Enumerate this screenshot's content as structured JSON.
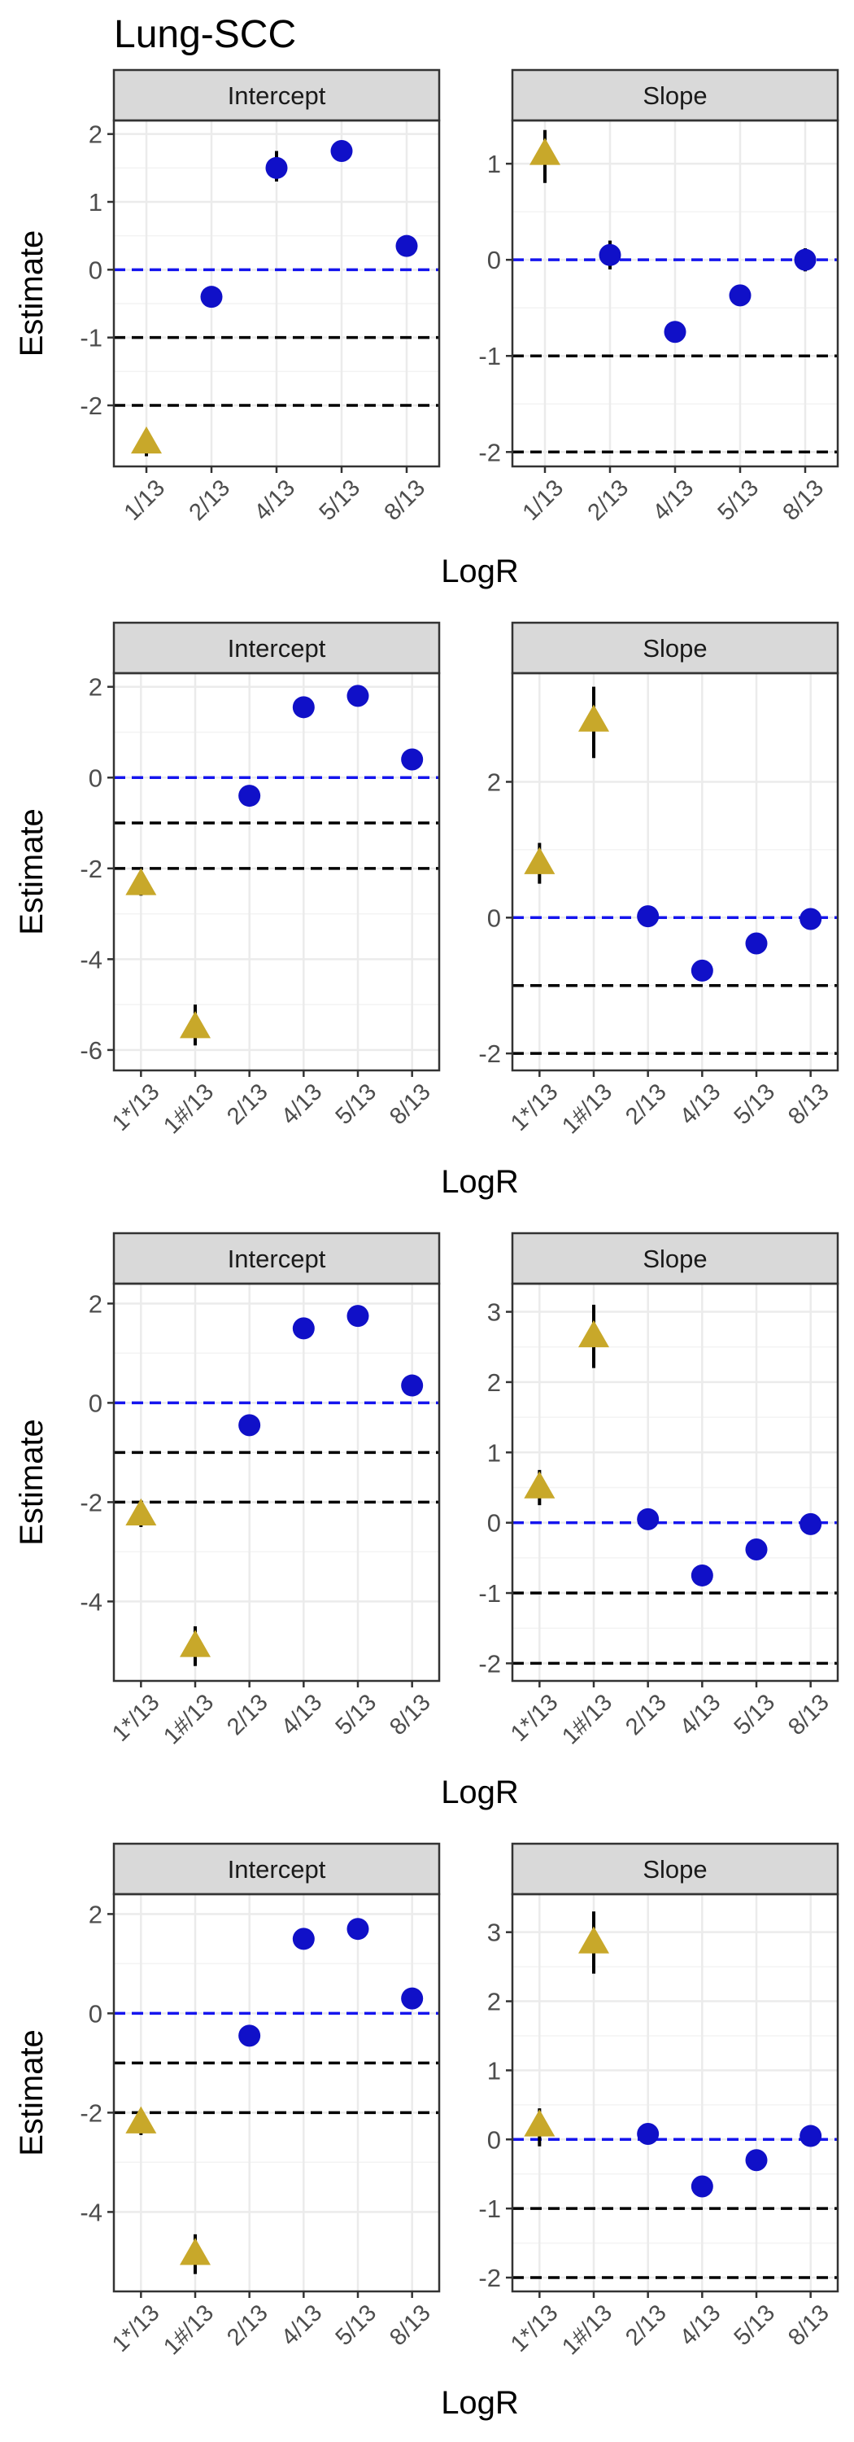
{
  "figure_title": "Lung-SCC",
  "colors": {
    "point": "#1010c8",
    "triangle": "#c8a82a",
    "zero_line": "#1515ee",
    "ref_line": "#000000",
    "strip_bg": "#d9d9d9",
    "grid": "#ebebeb"
  },
  "chart_data": [
    {
      "type": "scatter",
      "xlabel": "LogR",
      "ylabel": "Estimate",
      "categories": [
        "1/13",
        "2/13",
        "4/13",
        "5/13",
        "8/13"
      ],
      "panels": [
        {
          "strip": "Intercept",
          "ylim": [
            -2.9,
            2.2
          ],
          "yticks": [
            -2,
            -1,
            0,
            1,
            2
          ],
          "points": [
            {
              "x": "1/13",
              "y": -2.55,
              "shape": "triangle",
              "lo": -2.75,
              "hi": -2.35
            },
            {
              "x": "2/13",
              "y": -0.4,
              "shape": "circle"
            },
            {
              "x": "4/13",
              "y": 1.5,
              "shape": "circle",
              "lo": 1.3,
              "hi": 1.75
            },
            {
              "x": "5/13",
              "y": 1.75,
              "shape": "circle"
            },
            {
              "x": "8/13",
              "y": 0.35,
              "shape": "circle"
            }
          ]
        },
        {
          "strip": "Slope",
          "ylim": [
            -2.15,
            1.45
          ],
          "yticks": [
            -2,
            -1,
            0,
            1
          ],
          "points": [
            {
              "x": "1/13",
              "y": 1.1,
              "shape": "triangle",
              "lo": 0.8,
              "hi": 1.35
            },
            {
              "x": "2/13",
              "y": 0.05,
              "shape": "circle",
              "lo": -0.1,
              "hi": 0.2
            },
            {
              "x": "4/13",
              "y": -0.75,
              "shape": "circle"
            },
            {
              "x": "5/13",
              "y": -0.37,
              "shape": "circle"
            },
            {
              "x": "8/13",
              "y": 0.0,
              "shape": "circle",
              "lo": -0.12,
              "hi": 0.12
            }
          ]
        }
      ]
    },
    {
      "type": "scatter",
      "xlabel": "LogR",
      "ylabel": "Estimate",
      "categories": [
        "1*/13",
        "1#/13",
        "2/13",
        "4/13",
        "5/13",
        "8/13"
      ],
      "panels": [
        {
          "strip": "Intercept",
          "ylim": [
            -6.45,
            2.3
          ],
          "yticks": [
            -6,
            -4,
            -2,
            0,
            2
          ],
          "points": [
            {
              "x": "1*/13",
              "y": -2.35,
              "shape": "triangle",
              "lo": -2.6,
              "hi": -2.1
            },
            {
              "x": "1#/13",
              "y": -5.5,
              "shape": "triangle",
              "lo": -5.9,
              "hi": -5.0
            },
            {
              "x": "2/13",
              "y": -0.4,
              "shape": "circle"
            },
            {
              "x": "4/13",
              "y": 1.55,
              "shape": "circle"
            },
            {
              "x": "5/13",
              "y": 1.8,
              "shape": "circle"
            },
            {
              "x": "8/13",
              "y": 0.4,
              "shape": "circle"
            }
          ]
        },
        {
          "strip": "Slope",
          "ylim": [
            -2.25,
            3.6
          ],
          "yticks": [
            -2,
            0,
            2
          ],
          "points": [
            {
              "x": "1*/13",
              "y": 0.8,
              "shape": "triangle",
              "lo": 0.5,
              "hi": 1.1
            },
            {
              "x": "1#/13",
              "y": 2.9,
              "shape": "triangle",
              "lo": 2.35,
              "hi": 3.4
            },
            {
              "x": "2/13",
              "y": 0.02,
              "shape": "circle"
            },
            {
              "x": "4/13",
              "y": -0.78,
              "shape": "circle"
            },
            {
              "x": "5/13",
              "y": -0.38,
              "shape": "circle"
            },
            {
              "x": "8/13",
              "y": -0.02,
              "shape": "circle"
            }
          ]
        }
      ]
    },
    {
      "type": "scatter",
      "xlabel": "LogR",
      "ylabel": "Estimate",
      "categories": [
        "1*/13",
        "1#/13",
        "2/13",
        "4/13",
        "5/13",
        "8/13"
      ],
      "panels": [
        {
          "strip": "Intercept",
          "ylim": [
            -5.6,
            2.4
          ],
          "yticks": [
            -4,
            -2,
            0,
            2
          ],
          "points": [
            {
              "x": "1*/13",
              "y": -2.25,
              "shape": "triangle",
              "lo": -2.5,
              "hi": -2.0
            },
            {
              "x": "1#/13",
              "y": -4.9,
              "shape": "triangle",
              "lo": -5.3,
              "hi": -4.5
            },
            {
              "x": "2/13",
              "y": -0.45,
              "shape": "circle"
            },
            {
              "x": "4/13",
              "y": 1.5,
              "shape": "circle"
            },
            {
              "x": "5/13",
              "y": 1.75,
              "shape": "circle"
            },
            {
              "x": "8/13",
              "y": 0.35,
              "shape": "circle"
            }
          ]
        },
        {
          "strip": "Slope",
          "ylim": [
            -2.25,
            3.4
          ],
          "yticks": [
            -2,
            -1,
            0,
            1,
            2,
            3
          ],
          "points": [
            {
              "x": "1*/13",
              "y": 0.5,
              "shape": "triangle",
              "lo": 0.25,
              "hi": 0.75
            },
            {
              "x": "1#/13",
              "y": 2.65,
              "shape": "triangle",
              "lo": 2.2,
              "hi": 3.1
            },
            {
              "x": "2/13",
              "y": 0.05,
              "shape": "circle"
            },
            {
              "x": "4/13",
              "y": -0.75,
              "shape": "circle"
            },
            {
              "x": "5/13",
              "y": -0.38,
              "shape": "circle"
            },
            {
              "x": "8/13",
              "y": -0.02,
              "shape": "circle"
            }
          ]
        }
      ]
    },
    {
      "type": "scatter",
      "xlabel": "LogR",
      "ylabel": "Estimate",
      "categories": [
        "1*/13",
        "1#/13",
        "2/13",
        "4/13",
        "5/13",
        "8/13"
      ],
      "panels": [
        {
          "strip": "Intercept",
          "ylim": [
            -5.6,
            2.4
          ],
          "yticks": [
            -4,
            -2,
            0,
            2
          ],
          "points": [
            {
              "x": "1*/13",
              "y": -2.2,
              "shape": "triangle",
              "lo": -2.45,
              "hi": -1.95
            },
            {
              "x": "1#/13",
              "y": -4.85,
              "shape": "triangle",
              "lo": -5.25,
              "hi": -4.45
            },
            {
              "x": "2/13",
              "y": -0.45,
              "shape": "circle"
            },
            {
              "x": "4/13",
              "y": 1.5,
              "shape": "circle"
            },
            {
              "x": "5/13",
              "y": 1.7,
              "shape": "circle"
            },
            {
              "x": "8/13",
              "y": 0.3,
              "shape": "circle"
            }
          ]
        },
        {
          "strip": "Slope",
          "ylim": [
            -2.2,
            3.55
          ],
          "yticks": [
            -2,
            -1,
            0,
            1,
            2,
            3
          ],
          "points": [
            {
              "x": "1*/13",
              "y": 0.2,
              "shape": "triangle",
              "lo": -0.1,
              "hi": 0.45
            },
            {
              "x": "1#/13",
              "y": 2.85,
              "shape": "triangle",
              "lo": 2.4,
              "hi": 3.3
            },
            {
              "x": "2/13",
              "y": 0.08,
              "shape": "circle"
            },
            {
              "x": "4/13",
              "y": -0.68,
              "shape": "circle"
            },
            {
              "x": "5/13",
              "y": -0.3,
              "shape": "circle"
            },
            {
              "x": "8/13",
              "y": 0.05,
              "shape": "circle"
            }
          ]
        }
      ]
    }
  ]
}
